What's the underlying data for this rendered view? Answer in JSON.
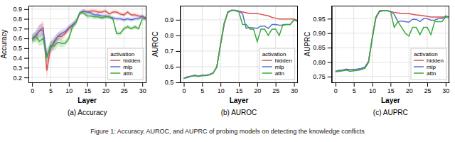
{
  "title": "Figure 1: Accuracy, AUROC, and AUPRC of probing models on detecting the knowledge conflicts",
  "chart_data": [
    {
      "type": "line",
      "title": "(a) Accuracy",
      "x_label": "Layer",
      "y_label": "Accuracy",
      "legend_title": "activation",
      "legend": "lower right",
      "grid": true,
      "x": [
        0,
        1,
        2,
        3,
        4,
        5,
        6,
        7,
        8,
        9,
        10,
        11,
        12,
        13,
        14,
        15,
        16,
        17,
        18,
        19,
        20,
        21,
        22,
        23,
        24,
        25,
        26,
        27,
        28,
        29,
        30,
        31
      ],
      "xlim": [
        -1,
        31
      ],
      "xticks": [
        0,
        5,
        10,
        15,
        20,
        25,
        30
      ],
      "ylim": [
        0.15,
        0.935
      ],
      "yticks": [
        0.2,
        0.3,
        0.4,
        0.5,
        0.6,
        0.7,
        0.8,
        0.9
      ],
      "series": [
        {
          "name": "hidden",
          "color": "#d9534f",
          "values": [
            0.6,
            0.62,
            0.68,
            0.71,
            0.27,
            0.5,
            0.55,
            0.62,
            0.62,
            0.65,
            0.7,
            0.73,
            0.77,
            0.86,
            0.88,
            0.87,
            0.88,
            0.88,
            0.87,
            0.87,
            0.88,
            0.85,
            0.87,
            0.87,
            0.85,
            0.84,
            0.87,
            0.84,
            0.84,
            0.83,
            0.82,
            0.81
          ],
          "std": [
            0.04,
            0.05,
            0.06,
            0.07,
            0.09,
            0.06,
            0.05,
            0.04,
            0.04,
            0.03,
            0.03,
            0.03,
            0.03,
            0.02,
            0.02,
            0.02,
            0.02,
            0.02,
            0.02,
            0.02,
            0.02,
            0.02,
            0.02,
            0.02,
            0.02,
            0.02,
            0.02,
            0.02,
            0.02,
            0.02,
            0.02,
            0.02
          ]
        },
        {
          "name": "mlp",
          "color": "#5b6dcf",
          "values": [
            0.6,
            0.63,
            0.68,
            0.68,
            0.42,
            0.5,
            0.57,
            0.62,
            0.65,
            0.67,
            0.71,
            0.74,
            0.77,
            0.86,
            0.88,
            0.87,
            0.86,
            0.84,
            0.84,
            0.83,
            0.83,
            0.82,
            0.81,
            0.8,
            0.8,
            0.79,
            0.8,
            0.79,
            0.8,
            0.8,
            0.83,
            0.8
          ],
          "std": [
            0.04,
            0.05,
            0.06,
            0.07,
            0.07,
            0.06,
            0.05,
            0.04,
            0.04,
            0.03,
            0.03,
            0.03,
            0.03,
            0.02,
            0.02,
            0.02,
            0.02,
            0.02,
            0.02,
            0.02,
            0.02,
            0.02,
            0.02,
            0.02,
            0.02,
            0.02,
            0.02,
            0.02,
            0.02,
            0.02,
            0.02,
            0.02
          ]
        },
        {
          "name": "attn",
          "color": "#3baa3b",
          "values": [
            0.58,
            0.62,
            0.57,
            0.6,
            0.4,
            0.53,
            0.52,
            0.56,
            0.55,
            0.55,
            0.6,
            0.72,
            0.77,
            0.86,
            0.86,
            0.83,
            0.83,
            0.82,
            0.82,
            0.81,
            0.82,
            0.82,
            0.8,
            0.65,
            0.65,
            0.7,
            0.72,
            0.7,
            0.72,
            0.7,
            0.8,
            0.8
          ],
          "std": [
            0.04,
            0.05,
            0.05,
            0.06,
            0.06,
            0.05,
            0.05,
            0.04,
            0.04,
            0.03,
            0.03,
            0.03,
            0.03,
            0.02,
            0.02,
            0.02,
            0.02,
            0.02,
            0.02,
            0.02,
            0.02,
            0.02,
            0.02,
            0.02,
            0.02,
            0.02,
            0.02,
            0.02,
            0.02,
            0.02,
            0.02,
            0.02
          ]
        }
      ]
    },
    {
      "type": "line",
      "title": "(b) AUROC",
      "x_label": "Layer",
      "y_label": "AUROC",
      "legend_title": "activation",
      "legend": "lower right",
      "grid": true,
      "x": [
        0,
        1,
        2,
        3,
        4,
        5,
        6,
        7,
        8,
        9,
        10,
        11,
        12,
        13,
        14,
        15,
        16,
        17,
        18,
        19,
        20,
        21,
        22,
        23,
        24,
        25,
        26,
        27,
        28,
        29,
        30,
        31
      ],
      "xlim": [
        -1,
        31
      ],
      "xticks": [
        0,
        5,
        10,
        15,
        20,
        25,
        30
      ],
      "ylim": [
        0.5,
        0.99
      ],
      "yticks": [
        0.5,
        0.6,
        0.7,
        0.8,
        0.9
      ],
      "series": [
        {
          "name": "hidden",
          "color": "#d9534f",
          "values": [
            0.525,
            0.535,
            0.54,
            0.545,
            0.54,
            0.545,
            0.545,
            0.55,
            0.56,
            0.6,
            0.74,
            0.87,
            0.95,
            0.96,
            0.96,
            0.955,
            0.95,
            0.945,
            0.94,
            0.94,
            0.94,
            0.935,
            0.93,
            0.925,
            0.915,
            0.91,
            0.905,
            0.905,
            0.905,
            0.905,
            0.905,
            0.895
          ]
        },
        {
          "name": "mlp",
          "color": "#5b6dcf",
          "values": [
            0.525,
            0.535,
            0.54,
            0.545,
            0.54,
            0.545,
            0.545,
            0.55,
            0.56,
            0.6,
            0.74,
            0.875,
            0.95,
            0.96,
            0.96,
            0.955,
            0.94,
            0.845,
            0.85,
            0.848,
            0.845,
            0.86,
            0.86,
            0.845,
            0.87,
            0.87,
            0.865,
            0.865,
            0.87,
            0.87,
            0.9,
            0.89
          ]
        },
        {
          "name": "attn",
          "color": "#3baa3b",
          "values": [
            0.525,
            0.53,
            0.538,
            0.542,
            0.538,
            0.542,
            0.543,
            0.548,
            0.558,
            0.598,
            0.745,
            0.88,
            0.945,
            0.96,
            0.958,
            0.95,
            0.87,
            0.87,
            0.84,
            0.84,
            0.76,
            0.84,
            0.84,
            0.8,
            0.84,
            0.84,
            0.8,
            0.87,
            0.87,
            0.87,
            0.9,
            0.89
          ]
        }
      ]
    },
    {
      "type": "line",
      "title": "(c) AUPRC",
      "x_label": "Layer",
      "y_label": "AUPRC",
      "legend_title": "activation",
      "legend": "lower right",
      "grid": true,
      "x": [
        0,
        1,
        2,
        3,
        4,
        5,
        6,
        7,
        8,
        9,
        10,
        11,
        12,
        13,
        14,
        15,
        16,
        17,
        18,
        19,
        20,
        21,
        22,
        23,
        24,
        25,
        26,
        27,
        28,
        29,
        30,
        31
      ],
      "xlim": [
        -1,
        31
      ],
      "xticks": [
        0,
        5,
        10,
        15,
        20,
        25,
        30
      ],
      "ylim": [
        0.73,
        0.995
      ],
      "yticks": [
        0.75,
        {
          "value": 0.8,
          "label": "0.80"
        },
        0.85,
        {
          "value": 0.9,
          "label": "0.90"
        },
        0.95
      ],
      "series": [
        {
          "name": "hidden",
          "color": "#d9534f",
          "values": [
            0.768,
            0.77,
            0.772,
            0.775,
            0.773,
            0.775,
            0.775,
            0.778,
            0.782,
            0.8,
            0.88,
            0.952,
            0.975,
            0.978,
            0.978,
            0.975,
            0.972,
            0.97,
            0.968,
            0.968,
            0.968,
            0.965,
            0.963,
            0.962,
            0.96,
            0.958,
            0.956,
            0.956,
            0.956,
            0.956,
            0.956,
            0.955
          ]
        },
        {
          "name": "mlp",
          "color": "#5b6dcf",
          "values": [
            0.768,
            0.772,
            0.773,
            0.776,
            0.773,
            0.775,
            0.776,
            0.778,
            0.783,
            0.802,
            0.882,
            0.954,
            0.975,
            0.978,
            0.978,
            0.975,
            0.965,
            0.94,
            0.942,
            0.94,
            0.938,
            0.948,
            0.948,
            0.94,
            0.95,
            0.95,
            0.945,
            0.945,
            0.95,
            0.95,
            0.96,
            0.955
          ]
        },
        {
          "name": "attn",
          "color": "#3baa3b",
          "values": [
            0.767,
            0.768,
            0.77,
            0.772,
            0.768,
            0.77,
            0.771,
            0.774,
            0.778,
            0.798,
            0.883,
            0.956,
            0.978,
            0.978,
            0.978,
            0.975,
            0.92,
            0.94,
            0.92,
            0.9,
            0.89,
            0.92,
            0.92,
            0.895,
            0.92,
            0.92,
            0.895,
            0.94,
            0.94,
            0.94,
            0.956,
            0.955
          ]
        }
      ]
    }
  ]
}
